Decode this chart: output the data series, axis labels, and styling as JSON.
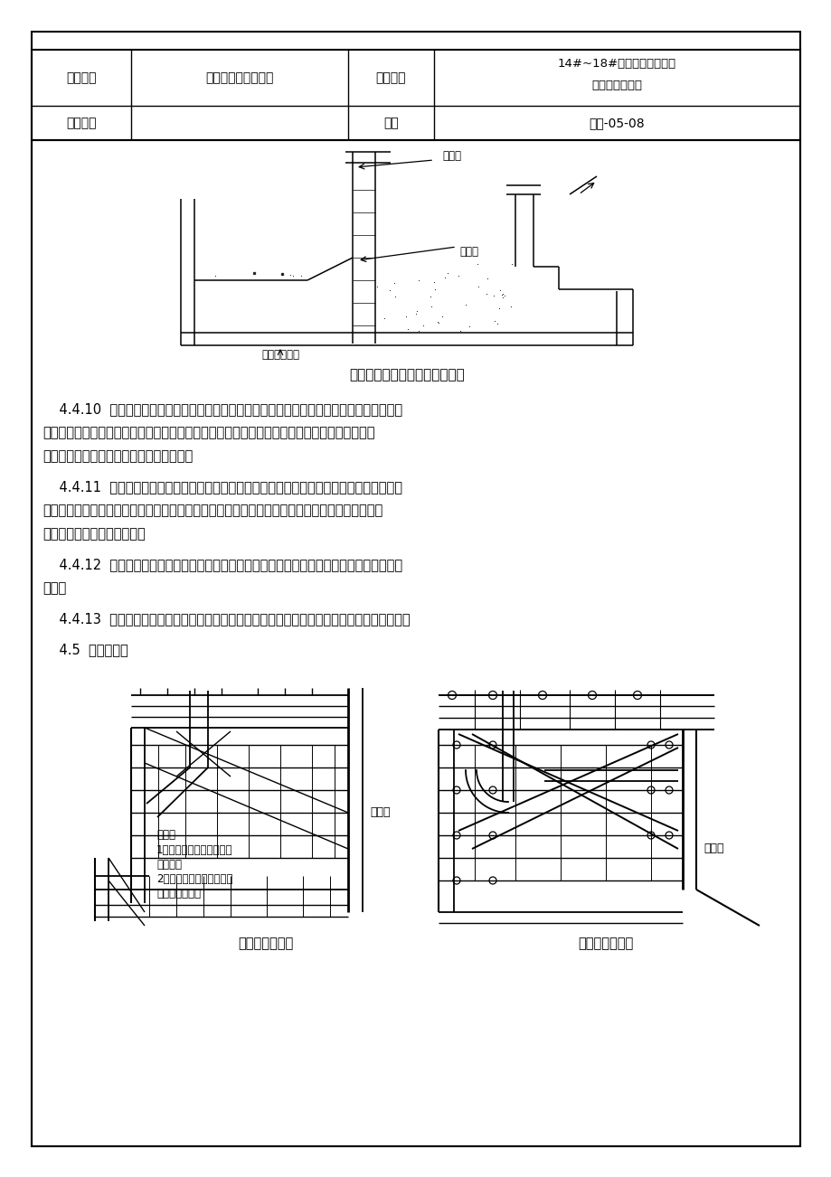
{
  "page_bg": "#ffffff",
  "border_color": "#000000",
  "header": {
    "row1_col1": "工程名称",
    "row1_col2": "某某村还迁住宅工程",
    "row1_col3": "交底部位",
    "row1_col4a": "14#~18#楼及地下车库基础",
    "row1_col4b": "底板混凝土浇筑",
    "row2_col1": "工程编号",
    "row2_col2": "",
    "row2_col3": "日期",
    "row2_col4": "某某-05-08"
  },
  "diag1_caption": "高低跨处混凝土浇筑方法示意图",
  "diag1_label_dierji": "第二级",
  "diag1_label_jiaojiao": "交角处",
  "diag1_label_diyiji": "第一级混凝土",
  "para1_line1": "    4.4.10  混凝土在泵送前，必须先泵水泥砂浆润滑管道，以防止随后泵送的混凝土在管道内阻",
  "para1_line2": "塞，并应在出灰点处用容器装满。泵送中管道堵塞清理时，为防止砼随处遗洒，清堵时必须垫竹",
  "para1_line3": "胶板，并将清出的砼及时运至浇筑面振实。",
  "para2_line1": "    4.4.11  底板砼达到设计标高并经过插入式振捣器振捣后，采用刮尺将砼表面刮平，搓毛。待",
  "para2_line2": "砼表面收水并开始初凝时，用磨光机到磨，以防止表面出现塑性沉降和快速失水导致的干缩裂缝，",
  "para2_line3": "最后用扫帚拉毛（东西向）。",
  "para3_line1": "    4.4.12  后浇带混凝土的浇筑必须派有丰富经验的技工负责监督振实和质量控制，防止过震、",
  "para3_line2": "漏震。",
  "para4": "    4.4.13  泌水处理：如遇到泌水较多，派专人用污水泵随时将积水抽出，并用海绵条将水吸干。",
  "para5": "    4.5  泵管的布设",
  "note1": "说明：",
  "note2": "1、水平管应与基坑壁有可",
  "note3": "靠连接；",
  "note4": "2、卸载的水平管应卡住泵",
  "note5": "管的接头部位。",
  "label_jkq_left": "基坑壁",
  "label_jkq_right": "基坑壁",
  "cap_left": "泵管加固布置图",
  "cap_right": "泵管转角加固图"
}
